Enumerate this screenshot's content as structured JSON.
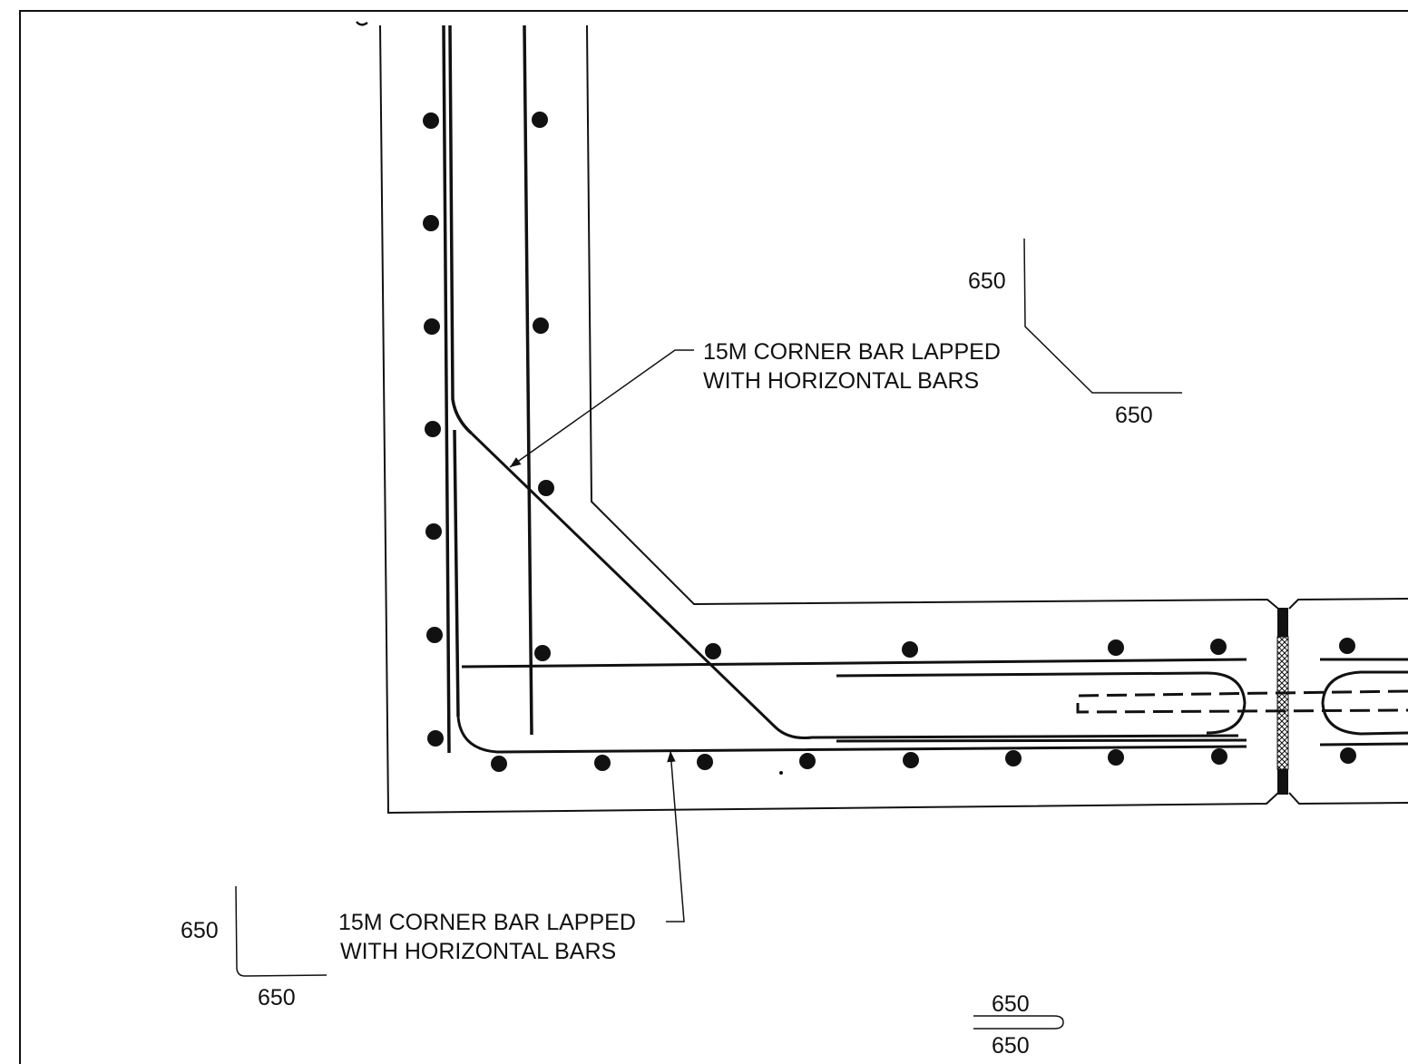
{
  "colors": {
    "line": "#111111",
    "background": "#ffffff"
  },
  "callouts": {
    "upper": {
      "line1": "15M CORNER BAR LAPPED",
      "line2": "WITH HORIZONTAL BARS"
    },
    "lower": {
      "line1": "15M CORNER BAR LAPPED",
      "line2": "WITH HORIZONTAL BARS"
    }
  },
  "bar_shapes": {
    "corner_bent": {
      "leg_vertical": "650",
      "leg_horizontal": "650"
    },
    "corner_l": {
      "leg_vertical": "650",
      "leg_horizontal": "650"
    },
    "hairpin": {
      "leg_top": "650",
      "leg_bottom": "650"
    }
  }
}
